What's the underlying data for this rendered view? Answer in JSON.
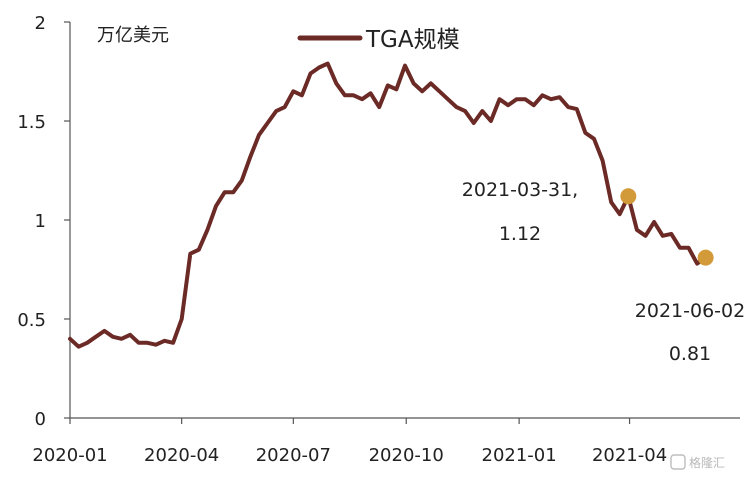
{
  "chart_data": {
    "type": "line",
    "title": "",
    "xlabel": "",
    "ylabel": "万亿美元",
    "ylim": [
      0,
      2
    ],
    "yticks": [
      "0",
      "0.5",
      "1",
      "1.5",
      "2"
    ],
    "xticks": [
      "2020-01",
      "2020-04",
      "2020-07",
      "2020-10",
      "2021-01",
      "2021-04"
    ],
    "xlim": [
      "2020-01-01",
      "2021-06-30"
    ],
    "grid": false,
    "legend_position": "top-center",
    "series": [
      {
        "name": "TGA规模",
        "color": "#6b2a25",
        "x": [
          "2020-01-01",
          "2020-01-08",
          "2020-01-15",
          "2020-01-22",
          "2020-01-29",
          "2020-02-05",
          "2020-02-12",
          "2020-02-19",
          "2020-02-26",
          "2020-03-04",
          "2020-03-11",
          "2020-03-18",
          "2020-03-25",
          "2020-04-01",
          "2020-04-08",
          "2020-04-15",
          "2020-04-22",
          "2020-04-29",
          "2020-05-06",
          "2020-05-13",
          "2020-05-20",
          "2020-05-27",
          "2020-06-03",
          "2020-06-10",
          "2020-06-17",
          "2020-06-24",
          "2020-07-01",
          "2020-07-08",
          "2020-07-15",
          "2020-07-22",
          "2020-07-29",
          "2020-08-05",
          "2020-08-12",
          "2020-08-19",
          "2020-08-26",
          "2020-09-02",
          "2020-09-09",
          "2020-09-16",
          "2020-09-23",
          "2020-09-30",
          "2020-10-07",
          "2020-10-14",
          "2020-10-21",
          "2020-10-28",
          "2020-11-04",
          "2020-11-11",
          "2020-11-18",
          "2020-11-25",
          "2020-12-02",
          "2020-12-09",
          "2020-12-16",
          "2020-12-23",
          "2020-12-30",
          "2021-01-06",
          "2021-01-13",
          "2021-01-20",
          "2021-01-27",
          "2021-02-03",
          "2021-02-10",
          "2021-02-17",
          "2021-02-24",
          "2021-03-03",
          "2021-03-10",
          "2021-03-17",
          "2021-03-24",
          "2021-03-31",
          "2021-04-07",
          "2021-04-14",
          "2021-04-21",
          "2021-04-28",
          "2021-05-05",
          "2021-05-12",
          "2021-05-19",
          "2021-05-26",
          "2021-06-02"
        ],
        "values": [
          0.4,
          0.36,
          0.38,
          0.41,
          0.44,
          0.41,
          0.4,
          0.42,
          0.38,
          0.38,
          0.37,
          0.39,
          0.38,
          0.5,
          0.83,
          0.85,
          0.95,
          1.07,
          1.14,
          1.14,
          1.2,
          1.32,
          1.43,
          1.49,
          1.55,
          1.57,
          1.65,
          1.63,
          1.74,
          1.77,
          1.79,
          1.69,
          1.63,
          1.63,
          1.61,
          1.64,
          1.57,
          1.68,
          1.66,
          1.78,
          1.69,
          1.65,
          1.69,
          1.65,
          1.61,
          1.57,
          1.55,
          1.49,
          1.55,
          1.5,
          1.61,
          1.58,
          1.61,
          1.61,
          1.58,
          1.63,
          1.61,
          1.62,
          1.57,
          1.56,
          1.44,
          1.41,
          1.3,
          1.09,
          1.03,
          1.12,
          0.95,
          0.92,
          0.99,
          0.92,
          0.93,
          0.86,
          0.86,
          0.78,
          0.81
        ]
      }
    ],
    "annotations": [
      {
        "label": "2021-03-31,",
        "value_label": "1.12",
        "x": "2021-03-31",
        "y": 1.12,
        "marker_color": "#d29a38"
      },
      {
        "label": "2021-06-02",
        "value_label": "0.81",
        "x": "2021-06-02",
        "y": 0.81,
        "marker_color": "#d29a38"
      }
    ]
  },
  "watermark": "格隆汇"
}
